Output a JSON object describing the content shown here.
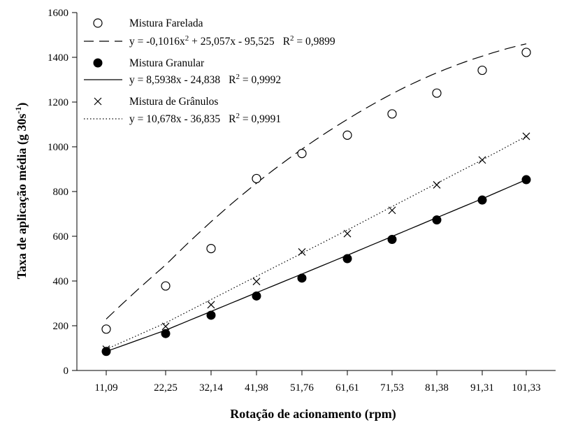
{
  "chart_data": {
    "type": "scatter",
    "title": "",
    "xlabel": "Rotação de acionamento (rpm)",
    "ylabel_main": "Taxa de aplicação média (g 30s",
    "ylabel_sup": "-1",
    "ylabel_end": ")",
    "ylim": [
      0,
      1600
    ],
    "yticks": [
      "0",
      "200",
      "400",
      "600",
      "800",
      "1000",
      "1200",
      "1400",
      "1600"
    ],
    "categories": [
      "11,09",
      "22,25",
      "32,14",
      "41,98",
      "51,76",
      "61,61",
      "71,53",
      "81,38",
      "91,31",
      "101,33"
    ],
    "legend_position": "top-left",
    "grid": false,
    "series": [
      {
        "name": "Mistura Farelada",
        "marker": "open-circle",
        "line_style": "dashed",
        "values": [
          185,
          378,
          545,
          858,
          970,
          1052,
          1147,
          1240,
          1342,
          1422
        ],
        "equation": {
          "prefix": "y = -0,1016x",
          "sup": "2",
          "rest": " + 25,057x - 95,525",
          "r2_label": "R",
          "r2_sup": "2",
          "r2_value": " = 0,9899"
        },
        "color": "#000000"
      },
      {
        "name": "Mistura Granular",
        "marker": "filled-circle",
        "line_style": "solid",
        "values": [
          85,
          165,
          247,
          333,
          413,
          500,
          586,
          673,
          762,
          853
        ],
        "equation": {
          "prefix": "y = 8,5938x - 24,838",
          "sup": "",
          "rest": "",
          "r2_label": "R",
          "r2_sup": "2",
          "r2_value": " = 0,9992"
        },
        "color": "#000000"
      },
      {
        "name": "Mistura de Grânulos",
        "marker": "cross",
        "line_style": "dotted",
        "values": [
          95,
          197,
          294,
          398,
          530,
          612,
          716,
          830,
          941,
          1047
        ],
        "equation": {
          "prefix": "y = 10,678x - 36,835",
          "sup": "",
          "rest": "",
          "r2_label": "R",
          "r2_sup": "2",
          "r2_value": " = 0,9991"
        },
        "color": "#000000"
      }
    ]
  }
}
